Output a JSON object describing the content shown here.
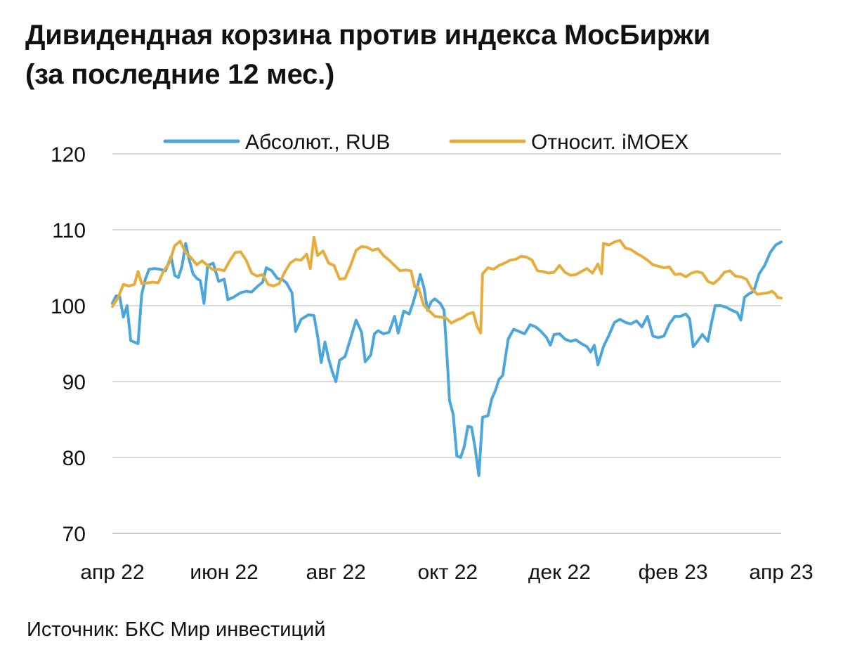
{
  "title_line1": "Дивидендная корзина против индекса МосБиржи",
  "title_line2": "(за последние 12 мес.)",
  "source": "Источник: БКС Мир инвестиций",
  "chart_data": {
    "type": "line",
    "title": "Дивидендная корзина против индекса МосБиржи (за последние 12 мес.)",
    "ylim": [
      70,
      120
    ],
    "yticks": [
      70,
      80,
      90,
      100,
      110,
      120
    ],
    "x_tick_labels": [
      "апр 22",
      "июн 22",
      "авг 22",
      "окт 22",
      "дек 22",
      "фев 23",
      "апр 23"
    ],
    "x_tick_dates": [
      "2022-04-01",
      "2022-06-01",
      "2022-08-01",
      "2022-10-01",
      "2022-12-01",
      "2023-02-01",
      "2023-04-01"
    ],
    "x_range": [
      "2022-04-01",
      "2023-04-01"
    ],
    "grid": true,
    "legend_position": "top",
    "series": [
      {
        "name": "Абсолют., RUB",
        "color": "#4ba6dc",
        "points": [
          [
            "2022-04-01",
            100.3
          ],
          [
            "2022-04-03",
            101.3
          ],
          [
            "2022-04-05",
            101.2
          ],
          [
            "2022-04-07",
            98.5
          ],
          [
            "2022-04-09",
            100.0
          ],
          [
            "2022-04-11",
            95.4
          ],
          [
            "2022-04-13",
            95.2
          ],
          [
            "2022-04-15",
            95.0
          ],
          [
            "2022-04-17",
            101.5
          ],
          [
            "2022-04-19",
            103.5
          ],
          [
            "2022-04-21",
            104.8
          ],
          [
            "2022-04-24",
            104.9
          ],
          [
            "2022-04-27",
            104.8
          ],
          [
            "2022-04-30",
            104.6
          ],
          [
            "2022-05-03",
            106.5
          ],
          [
            "2022-05-05",
            104.0
          ],
          [
            "2022-05-07",
            103.7
          ],
          [
            "2022-05-09",
            105.2
          ],
          [
            "2022-05-11",
            108.2
          ],
          [
            "2022-05-13",
            106.0
          ],
          [
            "2022-05-15",
            104.2
          ],
          [
            "2022-05-17",
            103.6
          ],
          [
            "2022-05-19",
            103.3
          ],
          [
            "2022-05-21",
            100.3
          ],
          [
            "2022-05-23",
            105.3
          ],
          [
            "2022-05-26",
            105.6
          ],
          [
            "2022-05-29",
            103.2
          ],
          [
            "2022-06-01",
            103.5
          ],
          [
            "2022-06-03",
            100.8
          ],
          [
            "2022-06-06",
            101.1
          ],
          [
            "2022-06-10",
            101.7
          ],
          [
            "2022-06-13",
            101.9
          ],
          [
            "2022-06-16",
            101.8
          ],
          [
            "2022-06-19",
            102.5
          ],
          [
            "2022-06-22",
            103.1
          ],
          [
            "2022-06-24",
            105.0
          ],
          [
            "2022-06-27",
            104.6
          ],
          [
            "2022-06-30",
            103.6
          ],
          [
            "2022-07-03",
            103.4
          ],
          [
            "2022-07-05",
            103.0
          ],
          [
            "2022-07-08",
            101.7
          ],
          [
            "2022-07-10",
            96.6
          ],
          [
            "2022-07-13",
            98.2
          ],
          [
            "2022-07-17",
            98.8
          ],
          [
            "2022-07-20",
            98.7
          ],
          [
            "2022-07-22",
            96.0
          ],
          [
            "2022-07-24",
            92.5
          ],
          [
            "2022-07-26",
            95.2
          ],
          [
            "2022-07-28",
            93.0
          ],
          [
            "2022-07-30",
            91.3
          ],
          [
            "2022-08-01",
            90.0
          ],
          [
            "2022-08-03",
            92.8
          ],
          [
            "2022-08-06",
            93.3
          ],
          [
            "2022-08-09",
            95.7
          ],
          [
            "2022-08-12",
            98.1
          ],
          [
            "2022-08-15",
            96.5
          ],
          [
            "2022-08-17",
            92.6
          ],
          [
            "2022-08-20",
            93.5
          ],
          [
            "2022-08-22",
            96.3
          ],
          [
            "2022-08-24",
            96.7
          ],
          [
            "2022-08-27",
            96.3
          ],
          [
            "2022-08-30",
            96.5
          ],
          [
            "2022-09-02",
            98.6
          ],
          [
            "2022-09-04",
            96.4
          ],
          [
            "2022-09-07",
            99.3
          ],
          [
            "2022-09-10",
            98.9
          ],
          [
            "2022-09-12",
            100.3
          ],
          [
            "2022-09-14",
            102.0
          ],
          [
            "2022-09-16",
            104.1
          ],
          [
            "2022-09-18",
            102.4
          ],
          [
            "2022-09-20",
            99.4
          ],
          [
            "2022-09-22",
            100.5
          ],
          [
            "2022-09-24",
            100.9
          ],
          [
            "2022-09-27",
            100.3
          ],
          [
            "2022-09-29",
            99.4
          ],
          [
            "2022-10-01",
            91.8
          ],
          [
            "2022-10-02",
            87.5
          ],
          [
            "2022-10-04",
            85.7
          ],
          [
            "2022-10-06",
            80.2
          ],
          [
            "2022-10-08",
            80.0
          ],
          [
            "2022-10-10",
            81.4
          ],
          [
            "2022-10-12",
            84.1
          ],
          [
            "2022-10-14",
            84.0
          ],
          [
            "2022-10-16",
            81.2
          ],
          [
            "2022-10-18",
            77.6
          ],
          [
            "2022-10-20",
            85.3
          ],
          [
            "2022-10-23",
            85.5
          ],
          [
            "2022-10-25",
            87.7
          ],
          [
            "2022-10-27",
            88.8
          ],
          [
            "2022-10-29",
            90.3
          ],
          [
            "2022-10-31",
            90.8
          ],
          [
            "2022-11-03",
            95.6
          ],
          [
            "2022-11-06",
            96.9
          ],
          [
            "2022-11-09",
            96.6
          ],
          [
            "2022-11-12",
            96.3
          ],
          [
            "2022-11-15",
            97.5
          ],
          [
            "2022-11-18",
            97.2
          ],
          [
            "2022-11-21",
            96.6
          ],
          [
            "2022-11-24",
            95.8
          ],
          [
            "2022-11-26",
            94.8
          ],
          [
            "2022-11-28",
            96.2
          ],
          [
            "2022-12-01",
            96.3
          ],
          [
            "2022-12-04",
            95.6
          ],
          [
            "2022-12-07",
            95.3
          ],
          [
            "2022-12-10",
            95.5
          ],
          [
            "2022-12-13",
            95.0
          ],
          [
            "2022-12-16",
            94.6
          ],
          [
            "2022-12-18",
            93.9
          ],
          [
            "2022-12-20",
            94.8
          ],
          [
            "2022-12-22",
            92.2
          ],
          [
            "2022-12-25",
            94.6
          ],
          [
            "2022-12-28",
            96.1
          ],
          [
            "2022-12-31",
            97.8
          ],
          [
            "2023-01-03",
            98.2
          ],
          [
            "2023-01-06",
            97.8
          ],
          [
            "2023-01-09",
            97.6
          ],
          [
            "2023-01-12",
            98.0
          ],
          [
            "2023-01-15",
            97.2
          ],
          [
            "2023-01-18",
            98.6
          ],
          [
            "2023-01-21",
            96.0
          ],
          [
            "2023-01-24",
            95.8
          ],
          [
            "2023-01-27",
            96.0
          ],
          [
            "2023-01-30",
            97.6
          ],
          [
            "2023-02-02",
            98.6
          ],
          [
            "2023-02-05",
            98.6
          ],
          [
            "2023-02-08",
            98.9
          ],
          [
            "2023-02-10",
            98.3
          ],
          [
            "2023-02-12",
            94.6
          ],
          [
            "2023-02-14",
            95.2
          ],
          [
            "2023-02-17",
            96.2
          ],
          [
            "2023-02-20",
            95.3
          ],
          [
            "2023-02-22",
            97.8
          ],
          [
            "2023-02-24",
            100.0
          ],
          [
            "2023-02-27",
            100.0
          ],
          [
            "2023-03-02",
            99.8
          ],
          [
            "2023-03-05",
            99.4
          ],
          [
            "2023-03-08",
            99.1
          ],
          [
            "2023-03-10",
            98.1
          ],
          [
            "2023-03-12",
            101.1
          ],
          [
            "2023-03-14",
            101.5
          ],
          [
            "2023-03-17",
            101.9
          ],
          [
            "2023-03-20",
            104.2
          ],
          [
            "2023-03-23",
            105.3
          ],
          [
            "2023-03-26",
            107.0
          ],
          [
            "2023-03-29",
            108.0
          ],
          [
            "2023-04-01",
            108.4
          ]
        ]
      },
      {
        "name": "Относит. iMOEX",
        "color": "#e6ad3c",
        "points": [
          [
            "2022-04-01",
            99.9
          ],
          [
            "2022-04-04",
            101.0
          ],
          [
            "2022-04-07",
            102.8
          ],
          [
            "2022-04-10",
            102.6
          ],
          [
            "2022-04-13",
            102.8
          ],
          [
            "2022-04-15",
            104.5
          ],
          [
            "2022-04-17",
            102.9
          ],
          [
            "2022-04-20",
            103.0
          ],
          [
            "2022-04-23",
            103.1
          ],
          [
            "2022-04-26",
            103.0
          ],
          [
            "2022-04-29",
            104.6
          ],
          [
            "2022-05-02",
            105.6
          ],
          [
            "2022-05-05",
            107.9
          ],
          [
            "2022-05-08",
            108.5
          ],
          [
            "2022-05-11",
            107.0
          ],
          [
            "2022-05-14",
            106.3
          ],
          [
            "2022-05-17",
            105.4
          ],
          [
            "2022-05-20",
            105.9
          ],
          [
            "2022-05-23",
            105.3
          ],
          [
            "2022-05-26",
            104.7
          ],
          [
            "2022-05-29",
            104.8
          ],
          [
            "2022-06-01",
            104.6
          ],
          [
            "2022-06-04",
            105.9
          ],
          [
            "2022-06-07",
            107.0
          ],
          [
            "2022-06-10",
            107.1
          ],
          [
            "2022-06-13",
            106.0
          ],
          [
            "2022-06-16",
            104.3
          ],
          [
            "2022-06-19",
            103.9
          ],
          [
            "2022-06-22",
            104.1
          ],
          [
            "2022-06-25",
            102.8
          ],
          [
            "2022-06-28",
            102.6
          ],
          [
            "2022-07-01",
            102.9
          ],
          [
            "2022-07-04",
            104.4
          ],
          [
            "2022-07-07",
            105.6
          ],
          [
            "2022-07-10",
            106.1
          ],
          [
            "2022-07-13",
            106.0
          ],
          [
            "2022-07-16",
            106.8
          ],
          [
            "2022-07-18",
            104.9
          ],
          [
            "2022-07-20",
            109.0
          ],
          [
            "2022-07-22",
            106.6
          ],
          [
            "2022-07-25",
            107.2
          ],
          [
            "2022-07-28",
            105.6
          ],
          [
            "2022-07-31",
            105.3
          ],
          [
            "2022-08-03",
            103.5
          ],
          [
            "2022-08-06",
            103.6
          ],
          [
            "2022-08-09",
            105.3
          ],
          [
            "2022-08-12",
            107.3
          ],
          [
            "2022-08-15",
            107.8
          ],
          [
            "2022-08-18",
            107.7
          ],
          [
            "2022-08-21",
            107.3
          ],
          [
            "2022-08-24",
            107.5
          ],
          [
            "2022-08-27",
            106.6
          ],
          [
            "2022-08-30",
            106.0
          ],
          [
            "2022-09-02",
            105.3
          ],
          [
            "2022-09-05",
            104.6
          ],
          [
            "2022-09-08",
            104.7
          ],
          [
            "2022-09-11",
            104.6
          ],
          [
            "2022-09-13",
            102.5
          ],
          [
            "2022-09-15",
            102.4
          ],
          [
            "2022-09-18",
            100.0
          ],
          [
            "2022-09-21",
            99.3
          ],
          [
            "2022-09-24",
            98.6
          ],
          [
            "2022-09-27",
            98.5
          ],
          [
            "2022-09-30",
            98.4
          ],
          [
            "2022-10-03",
            97.7
          ],
          [
            "2022-10-06",
            98.1
          ],
          [
            "2022-10-09",
            98.4
          ],
          [
            "2022-10-12",
            98.9
          ],
          [
            "2022-10-15",
            99.1
          ],
          [
            "2022-10-17",
            97.3
          ],
          [
            "2022-10-19",
            96.4
          ],
          [
            "2022-10-20",
            104.2
          ],
          [
            "2022-10-23",
            105.0
          ],
          [
            "2022-10-26",
            104.8
          ],
          [
            "2022-10-29",
            105.3
          ],
          [
            "2022-11-01",
            105.6
          ],
          [
            "2022-11-04",
            106.0
          ],
          [
            "2022-11-07",
            106.1
          ],
          [
            "2022-11-10",
            106.5
          ],
          [
            "2022-11-13",
            106.4
          ],
          [
            "2022-11-16",
            106.0
          ],
          [
            "2022-11-19",
            104.6
          ],
          [
            "2022-11-22",
            104.5
          ],
          [
            "2022-11-25",
            104.3
          ],
          [
            "2022-11-28",
            104.4
          ],
          [
            "2022-12-01",
            105.3
          ],
          [
            "2022-12-04",
            104.4
          ],
          [
            "2022-12-07",
            104.0
          ],
          [
            "2022-12-10",
            104.1
          ],
          [
            "2022-12-13",
            104.5
          ],
          [
            "2022-12-16",
            104.9
          ],
          [
            "2022-12-19",
            104.3
          ],
          [
            "2022-12-22",
            105.5
          ],
          [
            "2022-12-24",
            104.2
          ],
          [
            "2022-12-25",
            108.2
          ],
          [
            "2022-12-28",
            108.0
          ],
          [
            "2022-12-31",
            108.4
          ],
          [
            "2023-01-03",
            108.6
          ],
          [
            "2023-01-06",
            107.6
          ],
          [
            "2023-01-09",
            107.4
          ],
          [
            "2023-01-12",
            106.9
          ],
          [
            "2023-01-15",
            106.5
          ],
          [
            "2023-01-18",
            106.0
          ],
          [
            "2023-01-21",
            105.4
          ],
          [
            "2023-01-24",
            105.2
          ],
          [
            "2023-01-27",
            105.0
          ],
          [
            "2023-01-30",
            105.1
          ],
          [
            "2023-02-02",
            104.1
          ],
          [
            "2023-02-05",
            104.2
          ],
          [
            "2023-02-08",
            103.8
          ],
          [
            "2023-02-11",
            104.3
          ],
          [
            "2023-02-14",
            104.5
          ],
          [
            "2023-02-17",
            104.3
          ],
          [
            "2023-02-20",
            103.2
          ],
          [
            "2023-02-23",
            102.9
          ],
          [
            "2023-02-26",
            103.5
          ],
          [
            "2023-03-01",
            104.4
          ],
          [
            "2023-03-04",
            104.6
          ],
          [
            "2023-03-07",
            103.9
          ],
          [
            "2023-03-10",
            103.8
          ],
          [
            "2023-03-13",
            103.5
          ],
          [
            "2023-03-16",
            102.2
          ],
          [
            "2023-03-19",
            101.5
          ],
          [
            "2023-03-22",
            101.6
          ],
          [
            "2023-03-25",
            101.7
          ],
          [
            "2023-03-27",
            101.9
          ],
          [
            "2023-03-29",
            101.5
          ],
          [
            "2023-03-30",
            101.1
          ],
          [
            "2023-04-01",
            101.0
          ]
        ]
      }
    ]
  }
}
